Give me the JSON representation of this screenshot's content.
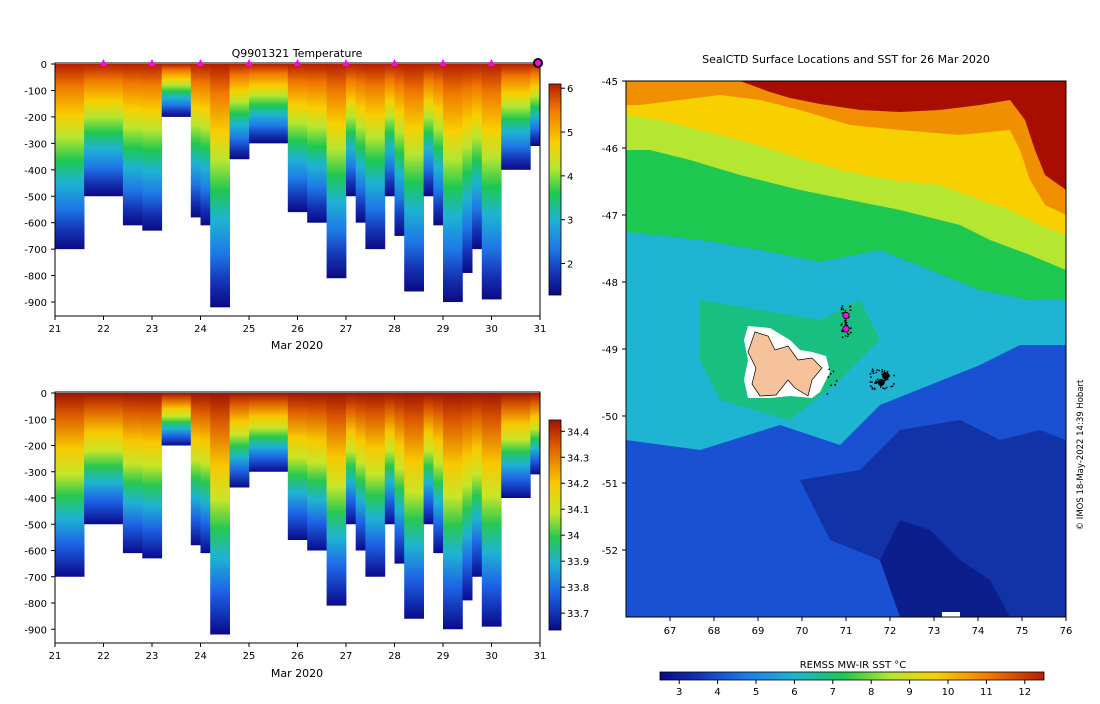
{
  "temperature_panel": {
    "title": "Q9901321  Temperature",
    "xlabel": "Mar 2020",
    "xticks": [
      "21",
      "22",
      "23",
      "24",
      "25",
      "26",
      "27",
      "28",
      "29",
      "30",
      "31"
    ],
    "yticks": [
      "0",
      "-100",
      "-200",
      "-300",
      "-400",
      "-500",
      "-600",
      "-700",
      "-800",
      "-900"
    ],
    "cbar_ticks": [
      "6",
      "5",
      "4",
      "3",
      "2"
    ]
  },
  "salinity_panel": {
    "xlabel": "Mar 2020",
    "xticks": [
      "21",
      "22",
      "23",
      "24",
      "25",
      "26",
      "27",
      "28",
      "29",
      "30",
      "31"
    ],
    "yticks": [
      "0",
      "-100",
      "-200",
      "-300",
      "-400",
      "-500",
      "-600",
      "-700",
      "-800",
      "-900"
    ],
    "cbar_ticks": [
      "34.4",
      "34.3",
      "34.2",
      "34.1",
      "34",
      "33.9",
      "33.8",
      "33.7"
    ]
  },
  "map_panel": {
    "title": "SealCTD Surface Locations and SST for 26 Mar 2020",
    "xticks": [
      "67",
      "68",
      "69",
      "70",
      "71",
      "72",
      "73",
      "74",
      "75",
      "76"
    ],
    "yticks": [
      "-45",
      "-46",
      "-47",
      "-48",
      "-49",
      "-50",
      "-51",
      "-52"
    ],
    "cbar_label": "REMSS MW-IR SST °C",
    "cbar_ticks": [
      "3",
      "4",
      "5",
      "6",
      "7",
      "8",
      "9",
      "10",
      "11",
      "12"
    ],
    "credit": "© IMOS 18-May-2022 14:39 Hobart"
  },
  "colors": {
    "marker": "#ff00ff",
    "land": "#f5c29c"
  },
  "chart_data": [
    {
      "type": "heatmap",
      "title": "Q9901321  Temperature",
      "xlabel": "Mar 2020",
      "ylabel": "",
      "xlim": [
        21,
        31
      ],
      "ylim": [
        -950,
        0
      ],
      "colorbar_range": [
        1.5,
        6.0
      ],
      "profile_max_depths": [
        700,
        700,
        700,
        500,
        500,
        500,
        500,
        610,
        610,
        630,
        630,
        200,
        200,
        200,
        580,
        610,
        920,
        920,
        360,
        360,
        300,
        300,
        300,
        300,
        560,
        560,
        600,
        600,
        810,
        810,
        500,
        600,
        700,
        700,
        500,
        650,
        860,
        860,
        500,
        610,
        900,
        900,
        790,
        700,
        890,
        890,
        400,
        400,
        400,
        310
      ],
      "surface_markers_day": [
        22,
        23,
        24,
        25,
        26,
        27,
        28,
        29,
        30,
        31
      ]
    },
    {
      "type": "heatmap",
      "title": "",
      "xlabel": "Mar 2020",
      "ylabel": "",
      "xlim": [
        21,
        31
      ],
      "ylim": [
        -950,
        0
      ],
      "colorbar_range": [
        33.65,
        34.45
      ],
      "profile_max_depths": [
        700,
        700,
        700,
        500,
        500,
        500,
        500,
        610,
        610,
        630,
        630,
        200,
        200,
        200,
        580,
        610,
        920,
        920,
        360,
        360,
        300,
        300,
        300,
        300,
        560,
        560,
        600,
        600,
        810,
        810,
        500,
        600,
        700,
        700,
        500,
        650,
        860,
        860,
        500,
        610,
        900,
        900,
        790,
        700,
        890,
        890,
        400,
        400,
        400,
        310
      ]
    },
    {
      "type": "heatmap",
      "title": "SealCTD Surface Locations and SST for 26 Mar 2020",
      "xlim": [
        66,
        76
      ],
      "ylim": [
        -53,
        -45
      ],
      "colorbar_label": "REMSS MW-IR SST °C",
      "colorbar_range": [
        2.5,
        12.5
      ],
      "island_center": [
        69.7,
        -49.3
      ],
      "seal_locations": [
        [
          71.0,
          -48.5
        ],
        [
          71.0,
          -48.7
        ],
        [
          71.9,
          -49.4
        ],
        [
          71.8,
          -49.5
        ]
      ]
    }
  ]
}
